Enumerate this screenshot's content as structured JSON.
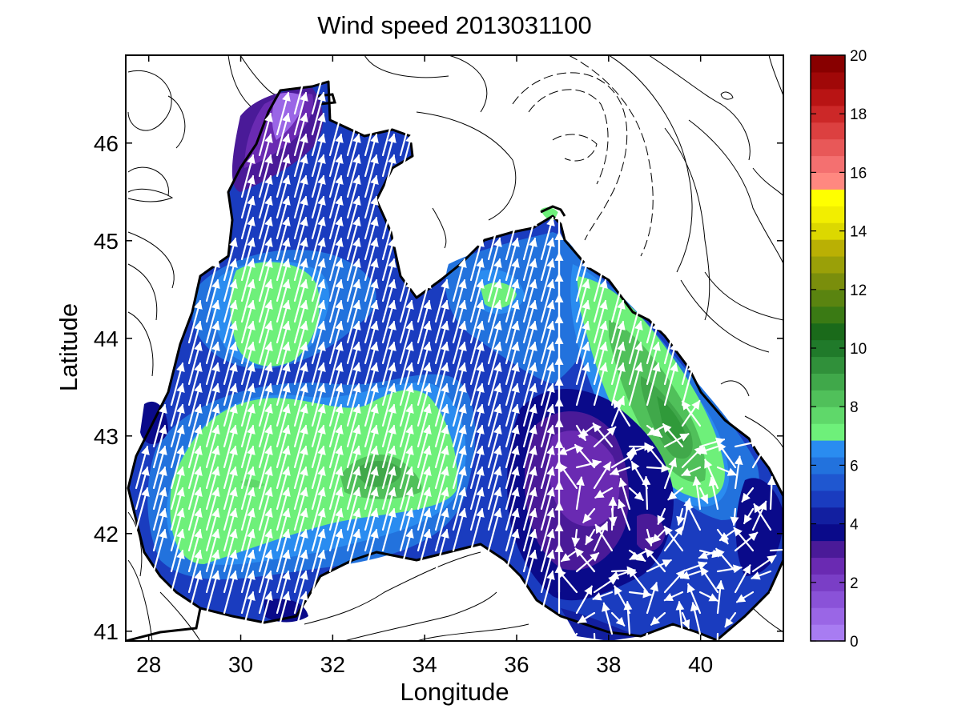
{
  "title": "Wind speed 2013031100",
  "xlabel": "Longitude",
  "ylabel": "Latitude",
  "chart_data": {
    "type": "heatmap",
    "title": "Wind speed 2013031100",
    "xlabel": "Longitude",
    "ylabel": "Latitude",
    "xlim": [
      27.5,
      41.8
    ],
    "ylim": [
      40.9,
      46.9
    ],
    "xticks": [
      "28",
      "30",
      "32",
      "34",
      "36",
      "38",
      "40"
    ],
    "yticks": [
      "41",
      "42",
      "43",
      "44",
      "45",
      "46"
    ],
    "colorbar": {
      "range": [
        0,
        20
      ],
      "ticks": [
        "0",
        "2",
        "4",
        "6",
        "8",
        "10",
        "12",
        "14",
        "16",
        "18",
        "20"
      ],
      "colors": [
        "#a87cf2",
        "#9a66e6",
        "#8a52d8",
        "#7a3ec6",
        "#6a2ab2",
        "#4a1a98",
        "#0a0a8a",
        "#121fa0",
        "#1a3cbf",
        "#1f57d0",
        "#2272dd",
        "#2a8cf0",
        "#6ef07a",
        "#5fd86a",
        "#50c05a",
        "#40a84a",
        "#30903a",
        "#207a2a",
        "#1a6a1a",
        "#3a7a14",
        "#5a8410",
        "#7a8e0c",
        "#9aa008",
        "#bab004",
        "#dcd800",
        "#f2ee00",
        "#ffff00",
        "#ff8880",
        "#f47070",
        "#e85858",
        "#dc4040",
        "#cc2828",
        "#b81414",
        "#a00808",
        "#880000"
      ]
    },
    "fields": [
      {
        "level": 8,
        "region": "west shelf (30.0–31.4E, 43.8–44.8N)"
      },
      {
        "level": 8,
        "region": "west basin (28.5–34.8E, 41.7–43.4N)"
      },
      {
        "level": 10,
        "region": "around 33.0E, 42.6N"
      },
      {
        "level": 8,
        "region": "east coast (37.8–40.7E, 42.3–44.6N)"
      },
      {
        "level": 10,
        "region": "around 39.6E, 43.0N"
      },
      {
        "level": 2,
        "region": "northwest shelf (29.0–31.5E, 45.5–46.5N)"
      },
      {
        "level": 2,
        "region": "southeast (36.8–38.5E, 41.7–43.2N)"
      }
    ]
  }
}
